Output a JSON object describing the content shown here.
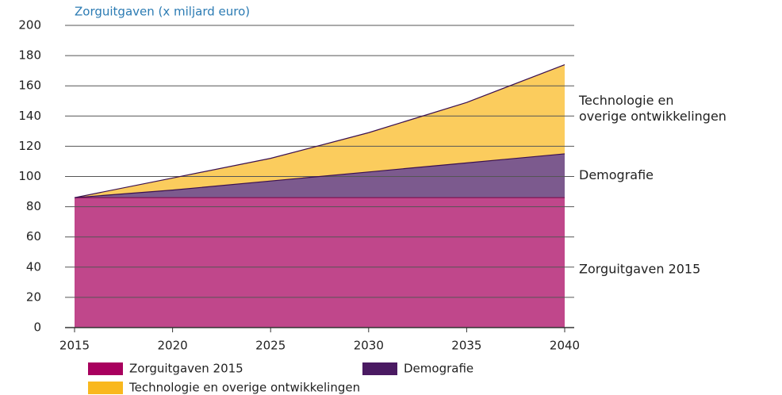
{
  "chart_data": {
    "type": "stacked_area",
    "title": "Zorguitgaven (x miljard euro)",
    "x": [
      2015,
      2020,
      2025,
      2030,
      2035,
      2040
    ],
    "xlim": [
      2015,
      2040
    ],
    "xticks": [
      2015,
      2020,
      2025,
      2030,
      2035,
      2040
    ],
    "ylim": [
      0,
      200
    ],
    "yticks": [
      0,
      20,
      40,
      60,
      80,
      100,
      120,
      140,
      160,
      180,
      200
    ],
    "grid": true,
    "series": [
      {
        "name": "Zorguitgaven 2015",
        "color": "#a8005e",
        "values": [
          86,
          86,
          86,
          86,
          86,
          86
        ]
      },
      {
        "name": "Demografie",
        "color": "#4a1a62",
        "values": [
          0,
          5,
          11,
          17,
          23,
          29
        ]
      },
      {
        "name": "Technologie en overige ontwikkelingen",
        "color": "#f9b81e",
        "values": [
          0,
          8,
          15,
          26,
          40,
          59
        ]
      }
    ],
    "annotations": [
      {
        "lines": [
          "Technologie en",
          "overige ontwikkelingen"
        ]
      },
      {
        "lines": [
          "Demografie"
        ]
      },
      {
        "lines": [
          "Zorguitgaven 2015"
        ]
      }
    ]
  }
}
